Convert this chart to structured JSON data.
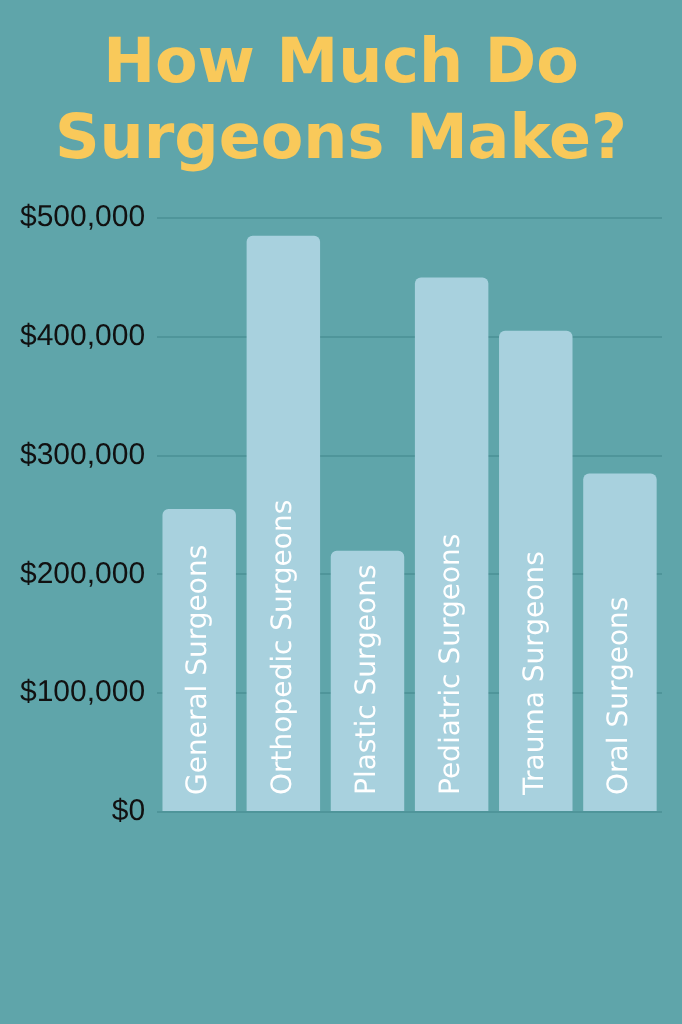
{
  "chart_data": {
    "type": "bar",
    "title": "How Much Do Surgeons Make?",
    "categories": [
      "General Surgeons",
      "Orthopedic Surgeons",
      "Plastic Surgeons",
      "Pediatric Surgeons",
      "Trauma Surgeons",
      "Oral Surgeons"
    ],
    "values": [
      255000,
      485000,
      220000,
      450000,
      405000,
      285000
    ],
    "color": "#a8d1de",
    "ylim": [
      0,
      500000
    ],
    "yticks": [
      {
        "value": 0,
        "label": "$0"
      },
      {
        "value": 100000,
        "label": "$100,000"
      },
      {
        "value": 200000,
        "label": "$200,000"
      },
      {
        "value": 300000,
        "label": "$300,000"
      },
      {
        "value": 400000,
        "label": "$400,000"
      },
      {
        "value": 500000,
        "label": "$500,000"
      }
    ],
    "grid": "y",
    "legend": false
  }
}
